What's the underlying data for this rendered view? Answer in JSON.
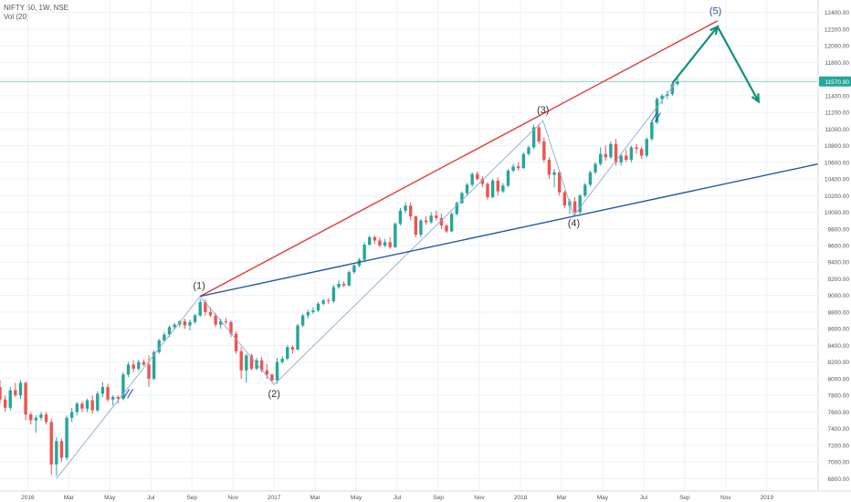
{
  "header": {
    "symbol_line": "NIFTY 50, 1W, NSE",
    "volume_label": "Vol (20)"
  },
  "chart_data": {
    "type": "candlestick",
    "y_axis": {
      "ticks": [
        6800,
        7000,
        7200,
        7400,
        7600,
        7800,
        8000,
        8200,
        8400,
        8600,
        8800,
        9000,
        9200,
        9400,
        9600,
        9800,
        10000,
        10200,
        10400,
        10600,
        10800,
        11000,
        11200,
        11400,
        11600,
        11800,
        12000,
        12200,
        12400
      ],
      "tick_labels": [
        "6800.00",
        "7000.00",
        "7200.00",
        "7400.00",
        "7600.00",
        "7800.00",
        "8000.00",
        "8200.00",
        "8400.00",
        "8600.00",
        "8800.00",
        "9000.00",
        "9200.00",
        "9400.00",
        "9600.00",
        "9800.00",
        "10000.00",
        "10200.00",
        "10400.00",
        "10600.00",
        "10800.00",
        "11000.00",
        "11200.00",
        "11400.00",
        "11600.00",
        "11800.00",
        "12000.00",
        "12200.00",
        "12400.00"
      ],
      "range": [
        6650,
        12550
      ],
      "position": "right"
    },
    "x_axis": {
      "labels": [
        {
          "text": "2016",
          "t": 0.0
        },
        {
          "text": "Mar",
          "t": 2.0
        },
        {
          "text": "May",
          "t": 4.0
        },
        {
          "text": "Jul",
          "t": 6.0
        },
        {
          "text": "Sep",
          "t": 8.0
        },
        {
          "text": "Nov",
          "t": 10.0
        },
        {
          "text": "2017",
          "t": 12.0
        },
        {
          "text": "Mar",
          "t": 14.0
        },
        {
          "text": "May",
          "t": 16.0
        },
        {
          "text": "Jul",
          "t": 18.0
        },
        {
          "text": "Sep",
          "t": 20.0
        },
        {
          "text": "Nov",
          "t": 22.0
        },
        {
          "text": "2018",
          "t": 24.0
        },
        {
          "text": "Mar",
          "t": 26.0
        },
        {
          "text": "May",
          "t": 28.0
        },
        {
          "text": "Jul",
          "t": 30.0
        },
        {
          "text": "Sep",
          "t": 32.0
        },
        {
          "text": "Nov",
          "t": 34.0
        },
        {
          "text": "2019",
          "t": 36.0
        }
      ],
      "range": [
        -1.35,
        38.5
      ],
      "unit": "months since Jan 2016"
    },
    "current_price": {
      "value": 11570.9,
      "label": "11570.90"
    },
    "candles": [
      {
        "t": -1.35,
        "o": 7900,
        "h": 7980,
        "l": 7700,
        "c": 7750
      },
      {
        "t": -1.1,
        "o": 7750,
        "h": 7800,
        "l": 7600,
        "c": 7650
      },
      {
        "t": -0.85,
        "o": 7650,
        "h": 7900,
        "l": 7620,
        "c": 7860
      },
      {
        "t": -0.6,
        "o": 7860,
        "h": 7950,
        "l": 7780,
        "c": 7800
      },
      {
        "t": -0.35,
        "o": 7800,
        "h": 7980,
        "l": 7760,
        "c": 7950
      },
      {
        "t": -0.1,
        "o": 7950,
        "h": 7970,
        "l": 7500,
        "c": 7570
      },
      {
        "t": 0.15,
        "o": 7570,
        "h": 7600,
        "l": 7450,
        "c": 7500
      },
      {
        "t": 0.4,
        "o": 7500,
        "h": 7560,
        "l": 7350,
        "c": 7530
      },
      {
        "t": 0.65,
        "o": 7530,
        "h": 7600,
        "l": 7500,
        "c": 7570
      },
      {
        "t": 0.9,
        "o": 7570,
        "h": 7600,
        "l": 7450,
        "c": 7480
      },
      {
        "t": 1.15,
        "o": 7480,
        "h": 7520,
        "l": 6850,
        "c": 6970
      },
      {
        "t": 1.4,
        "o": 6970,
        "h": 7300,
        "l": 6830,
        "c": 7250
      },
      {
        "t": 1.65,
        "o": 7250,
        "h": 7280,
        "l": 7000,
        "c": 7050
      },
      {
        "t": 1.9,
        "o": 7050,
        "h": 7560,
        "l": 7020,
        "c": 7530
      },
      {
        "t": 2.15,
        "o": 7530,
        "h": 7650,
        "l": 7480,
        "c": 7600
      },
      {
        "t": 2.4,
        "o": 7600,
        "h": 7720,
        "l": 7560,
        "c": 7700
      },
      {
        "t": 2.65,
        "o": 7700,
        "h": 7730,
        "l": 7600,
        "c": 7640
      },
      {
        "t": 2.9,
        "o": 7640,
        "h": 7760,
        "l": 7600,
        "c": 7740
      },
      {
        "t": 3.15,
        "o": 7740,
        "h": 7800,
        "l": 7580,
        "c": 7620
      },
      {
        "t": 3.4,
        "o": 7620,
        "h": 7850,
        "l": 7600,
        "c": 7820
      },
      {
        "t": 3.65,
        "o": 7820,
        "h": 7960,
        "l": 7780,
        "c": 7900
      },
      {
        "t": 3.9,
        "o": 7900,
        "h": 7940,
        "l": 7720,
        "c": 7750
      },
      {
        "t": 4.15,
        "o": 7750,
        "h": 7800,
        "l": 7680,
        "c": 7780
      },
      {
        "t": 4.4,
        "o": 7780,
        "h": 7800,
        "l": 7700,
        "c": 7760
      },
      {
        "t": 4.65,
        "o": 7760,
        "h": 8080,
        "l": 7740,
        "c": 8050
      },
      {
        "t": 4.9,
        "o": 8050,
        "h": 8200,
        "l": 8020,
        "c": 8170
      },
      {
        "t": 5.15,
        "o": 8170,
        "h": 8220,
        "l": 8080,
        "c": 8120
      },
      {
        "t": 5.4,
        "o": 8120,
        "h": 8230,
        "l": 8090,
        "c": 8200
      },
      {
        "t": 5.65,
        "o": 8200,
        "h": 8230,
        "l": 8150,
        "c": 8170
      },
      {
        "t": 5.9,
        "o": 8170,
        "h": 8280,
        "l": 7900,
        "c": 8000
      },
      {
        "t": 6.15,
        "o": 8000,
        "h": 8340,
        "l": 7980,
        "c": 8320
      },
      {
        "t": 6.4,
        "o": 8320,
        "h": 8480,
        "l": 8300,
        "c": 8460
      },
      {
        "t": 6.65,
        "o": 8460,
        "h": 8560,
        "l": 8440,
        "c": 8530
      },
      {
        "t": 6.9,
        "o": 8530,
        "h": 8640,
        "l": 8500,
        "c": 8620
      },
      {
        "t": 7.15,
        "o": 8620,
        "h": 8670,
        "l": 8590,
        "c": 8650
      },
      {
        "t": 7.4,
        "o": 8650,
        "h": 8700,
        "l": 8620,
        "c": 8690
      },
      {
        "t": 7.65,
        "o": 8690,
        "h": 8720,
        "l": 8600,
        "c": 8640
      },
      {
        "t": 7.9,
        "o": 8640,
        "h": 8710,
        "l": 8580,
        "c": 8680
      },
      {
        "t": 8.15,
        "o": 8680,
        "h": 8780,
        "l": 8660,
        "c": 8760
      },
      {
        "t": 8.4,
        "o": 8760,
        "h": 8960,
        "l": 8740,
        "c": 8920
      },
      {
        "t": 8.65,
        "o": 8920,
        "h": 8950,
        "l": 8760,
        "c": 8800
      },
      {
        "t": 8.9,
        "o": 8800,
        "h": 8860,
        "l": 8740,
        "c": 8760
      },
      {
        "t": 9.15,
        "o": 8760,
        "h": 8790,
        "l": 8620,
        "c": 8650
      },
      {
        "t": 9.4,
        "o": 8650,
        "h": 8720,
        "l": 8600,
        "c": 8690
      },
      {
        "t": 9.65,
        "o": 8690,
        "h": 8730,
        "l": 8650,
        "c": 8680
      },
      {
        "t": 9.9,
        "o": 8680,
        "h": 8700,
        "l": 8500,
        "c": 8540
      },
      {
        "t": 10.15,
        "o": 8540,
        "h": 8570,
        "l": 8300,
        "c": 8330
      },
      {
        "t": 10.4,
        "o": 8330,
        "h": 8380,
        "l": 8000,
        "c": 8100
      },
      {
        "t": 10.65,
        "o": 8100,
        "h": 8300,
        "l": 7950,
        "c": 8280
      },
      {
        "t": 10.9,
        "o": 8280,
        "h": 8300,
        "l": 8100,
        "c": 8120
      },
      {
        "t": 11.15,
        "o": 8120,
        "h": 8250,
        "l": 8100,
        "c": 8220
      },
      {
        "t": 11.4,
        "o": 8220,
        "h": 8260,
        "l": 8080,
        "c": 8100
      },
      {
        "t": 11.65,
        "o": 8100,
        "h": 8180,
        "l": 8000,
        "c": 8050
      },
      {
        "t": 11.9,
        "o": 8050,
        "h": 8060,
        "l": 7950,
        "c": 7980
      },
      {
        "t": 12.15,
        "o": 7980,
        "h": 8250,
        "l": 7940,
        "c": 8200
      },
      {
        "t": 12.4,
        "o": 8200,
        "h": 8270,
        "l": 8180,
        "c": 8240
      },
      {
        "t": 12.65,
        "o": 8240,
        "h": 8400,
        "l": 8220,
        "c": 8380
      },
      {
        "t": 12.9,
        "o": 8380,
        "h": 8400,
        "l": 8300,
        "c": 8350
      },
      {
        "t": 13.15,
        "o": 8350,
        "h": 8660,
        "l": 8340,
        "c": 8640
      },
      {
        "t": 13.4,
        "o": 8640,
        "h": 8780,
        "l": 8620,
        "c": 8760
      },
      {
        "t": 13.65,
        "o": 8760,
        "h": 8830,
        "l": 8720,
        "c": 8800
      },
      {
        "t": 13.9,
        "o": 8800,
        "h": 8860,
        "l": 8780,
        "c": 8820
      },
      {
        "t": 14.15,
        "o": 8820,
        "h": 8920,
        "l": 8800,
        "c": 8900
      },
      {
        "t": 14.4,
        "o": 8900,
        "h": 8960,
        "l": 8880,
        "c": 8940
      },
      {
        "t": 14.65,
        "o": 8940,
        "h": 8970,
        "l": 8900,
        "c": 8930
      },
      {
        "t": 14.9,
        "o": 8930,
        "h": 9130,
        "l": 8910,
        "c": 9100
      },
      {
        "t": 15.15,
        "o": 9100,
        "h": 9180,
        "l": 9080,
        "c": 9140
      },
      {
        "t": 15.4,
        "o": 9140,
        "h": 9170,
        "l": 9100,
        "c": 9120
      },
      {
        "t": 15.65,
        "o": 9120,
        "h": 9300,
        "l": 9110,
        "c": 9280
      },
      {
        "t": 15.9,
        "o": 9280,
        "h": 9380,
        "l": 9260,
        "c": 9360
      },
      {
        "t": 16.15,
        "o": 9360,
        "h": 9450,
        "l": 9340,
        "c": 9430
      },
      {
        "t": 16.4,
        "o": 9430,
        "h": 9640,
        "l": 9400,
        "c": 9610
      },
      {
        "t": 16.65,
        "o": 9610,
        "h": 9720,
        "l": 9600,
        "c": 9700
      },
      {
        "t": 16.9,
        "o": 9700,
        "h": 9720,
        "l": 9620,
        "c": 9660
      },
      {
        "t": 17.15,
        "o": 9660,
        "h": 9700,
        "l": 9580,
        "c": 9600
      },
      {
        "t": 17.4,
        "o": 9600,
        "h": 9680,
        "l": 9580,
        "c": 9640
      },
      {
        "t": 17.65,
        "o": 9640,
        "h": 9700,
        "l": 9560,
        "c": 9580
      },
      {
        "t": 17.9,
        "o": 9580,
        "h": 9880,
        "l": 9570,
        "c": 9860
      },
      {
        "t": 18.15,
        "o": 9860,
        "h": 10050,
        "l": 9840,
        "c": 10020
      },
      {
        "t": 18.4,
        "o": 10020,
        "h": 10120,
        "l": 9990,
        "c": 10080
      },
      {
        "t": 18.65,
        "o": 10080,
        "h": 10120,
        "l": 9900,
        "c": 9950
      },
      {
        "t": 18.9,
        "o": 9950,
        "h": 9960,
        "l": 9700,
        "c": 9730
      },
      {
        "t": 19.15,
        "o": 9730,
        "h": 9920,
        "l": 9700,
        "c": 9900
      },
      {
        "t": 19.4,
        "o": 9900,
        "h": 9950,
        "l": 9850,
        "c": 9880
      },
      {
        "t": 19.65,
        "o": 9880,
        "h": 10000,
        "l": 9860,
        "c": 9960
      },
      {
        "t": 19.9,
        "o": 9960,
        "h": 10020,
        "l": 9900,
        "c": 9930
      },
      {
        "t": 20.15,
        "o": 9930,
        "h": 9980,
        "l": 9800,
        "c": 9840
      },
      {
        "t": 20.4,
        "o": 9840,
        "h": 9860,
        "l": 9750,
        "c": 9770
      },
      {
        "t": 20.65,
        "o": 9770,
        "h": 10000,
        "l": 9760,
        "c": 9980
      },
      {
        "t": 20.9,
        "o": 9980,
        "h": 10130,
        "l": 9960,
        "c": 10110
      },
      {
        "t": 21.15,
        "o": 10110,
        "h": 10250,
        "l": 10100,
        "c": 10230
      },
      {
        "t": 21.4,
        "o": 10230,
        "h": 10350,
        "l": 10200,
        "c": 10330
      },
      {
        "t": 21.65,
        "o": 10330,
        "h": 10480,
        "l": 10300,
        "c": 10460
      },
      {
        "t": 21.9,
        "o": 10460,
        "h": 10490,
        "l": 10380,
        "c": 10400
      },
      {
        "t": 22.15,
        "o": 10400,
        "h": 10430,
        "l": 10300,
        "c": 10340
      },
      {
        "t": 22.4,
        "o": 10340,
        "h": 10360,
        "l": 10150,
        "c": 10180
      },
      {
        "t": 22.65,
        "o": 10180,
        "h": 10400,
        "l": 10170,
        "c": 10380
      },
      {
        "t": 22.9,
        "o": 10380,
        "h": 10420,
        "l": 10200,
        "c": 10250
      },
      {
        "t": 23.15,
        "o": 10250,
        "h": 10350,
        "l": 10230,
        "c": 10320
      },
      {
        "t": 23.4,
        "o": 10320,
        "h": 10520,
        "l": 10300,
        "c": 10500
      },
      {
        "t": 23.65,
        "o": 10500,
        "h": 10580,
        "l": 10480,
        "c": 10550
      },
      {
        "t": 23.9,
        "o": 10550,
        "h": 10600,
        "l": 10500,
        "c": 10530
      },
      {
        "t": 24.15,
        "o": 10530,
        "h": 10720,
        "l": 10520,
        "c": 10700
      },
      {
        "t": 24.4,
        "o": 10700,
        "h": 10800,
        "l": 10680,
        "c": 10780
      },
      {
        "t": 24.65,
        "o": 10780,
        "h": 11050,
        "l": 10760,
        "c": 11020
      },
      {
        "t": 24.9,
        "o": 11020,
        "h": 11060,
        "l": 10820,
        "c": 10850
      },
      {
        "t": 25.15,
        "o": 10850,
        "h": 10900,
        "l": 10600,
        "c": 10630
      },
      {
        "t": 25.4,
        "o": 10630,
        "h": 10660,
        "l": 10400,
        "c": 10450
      },
      {
        "t": 25.65,
        "o": 10450,
        "h": 10520,
        "l": 10300,
        "c": 10480
      },
      {
        "t": 25.9,
        "o": 10480,
        "h": 10500,
        "l": 10200,
        "c": 10240
      },
      {
        "t": 26.15,
        "o": 10240,
        "h": 10260,
        "l": 10050,
        "c": 10080
      },
      {
        "t": 26.4,
        "o": 10080,
        "h": 10160,
        "l": 9980,
        "c": 10130
      },
      {
        "t": 26.65,
        "o": 10130,
        "h": 10180,
        "l": 9960,
        "c": 10000
      },
      {
        "t": 26.9,
        "o": 10000,
        "h": 10220,
        "l": 9980,
        "c": 10200
      },
      {
        "t": 27.15,
        "o": 10200,
        "h": 10350,
        "l": 10180,
        "c": 10330
      },
      {
        "t": 27.4,
        "o": 10330,
        "h": 10500,
        "l": 10310,
        "c": 10480
      },
      {
        "t": 27.65,
        "o": 10480,
        "h": 10600,
        "l": 10460,
        "c": 10580
      },
      {
        "t": 27.9,
        "o": 10580,
        "h": 10780,
        "l": 10560,
        "c": 10700
      },
      {
        "t": 28.15,
        "o": 10700,
        "h": 10800,
        "l": 10620,
        "c": 10660
      },
      {
        "t": 28.4,
        "o": 10660,
        "h": 10850,
        "l": 10640,
        "c": 10820
      },
      {
        "t": 28.65,
        "o": 10820,
        "h": 10880,
        "l": 10560,
        "c": 10600
      },
      {
        "t": 28.9,
        "o": 10600,
        "h": 10700,
        "l": 10560,
        "c": 10680
      },
      {
        "t": 29.15,
        "o": 10680,
        "h": 10750,
        "l": 10600,
        "c": 10630
      },
      {
        "t": 29.4,
        "o": 10630,
        "h": 10800,
        "l": 10600,
        "c": 10780
      },
      {
        "t": 29.65,
        "o": 10780,
        "h": 10820,
        "l": 10700,
        "c": 10760
      },
      {
        "t": 29.9,
        "o": 10760,
        "h": 10790,
        "l": 10640,
        "c": 10680
      },
      {
        "t": 30.15,
        "o": 10680,
        "h": 10900,
        "l": 10660,
        "c": 10880
      },
      {
        "t": 30.4,
        "o": 10880,
        "h": 11100,
        "l": 10860,
        "c": 11080
      },
      {
        "t": 30.65,
        "o": 11080,
        "h": 11380,
        "l": 11060,
        "c": 11360
      },
      {
        "t": 30.9,
        "o": 11360,
        "h": 11420,
        "l": 11300,
        "c": 11400
      },
      {
        "t": 31.15,
        "o": 11400,
        "h": 11460,
        "l": 11360,
        "c": 11420
      },
      {
        "t": 31.4,
        "o": 11420,
        "h": 11560,
        "l": 11400,
        "c": 11540
      },
      {
        "t": 31.65,
        "o": 11540,
        "h": 11620,
        "l": 11520,
        "c": 11570
      }
    ],
    "trendlines": [
      {
        "name": "upper-channel-line",
        "color": "#e53935",
        "points": [
          [
            8.4,
            8990
          ],
          [
            33.6,
            12300
          ]
        ]
      },
      {
        "name": "lower-channel-line",
        "color": "#2255aa",
        "points": [
          [
            8.4,
            8990
          ],
          [
            38.5,
            10580
          ]
        ]
      }
    ],
    "wave_path": {
      "color": "#8fa8d8",
      "points": [
        [
          1.4,
          6800
        ],
        [
          8.4,
          8990
        ],
        [
          12.0,
          7930
        ],
        [
          25.1,
          11100
        ],
        [
          26.6,
          9960
        ],
        [
          31.6,
          11570
        ]
      ]
    },
    "wave_labels": [
      {
        "text": "(1)",
        "t": 8.35,
        "v": 9080
      },
      {
        "text": "(2)",
        "t": 12.0,
        "v": 7780
      },
      {
        "text": "(3)",
        "t": 25.1,
        "v": 11190
      },
      {
        "text": "(4)",
        "t": 26.6,
        "v": 9830
      },
      {
        "text": "(5)",
        "t": 33.5,
        "v": 12380
      }
    ],
    "projection": {
      "color": "#0f8f7a",
      "points": [
        [
          31.4,
          11550
        ],
        [
          33.6,
          12230
        ],
        [
          35.6,
          11330
        ]
      ]
    },
    "tick_marks": [
      [
        4.9,
        7820
      ],
      [
        30.6,
        11140
      ]
    ],
    "colors": {
      "up": "#26a69a",
      "down": "#ef5350",
      "grid": "#eef1f5",
      "current_line": "#26a69a",
      "current_badge": "#26a69a",
      "axis_text": "#555555",
      "wave_label": "#333333",
      "label_5": "#2255aa"
    }
  }
}
